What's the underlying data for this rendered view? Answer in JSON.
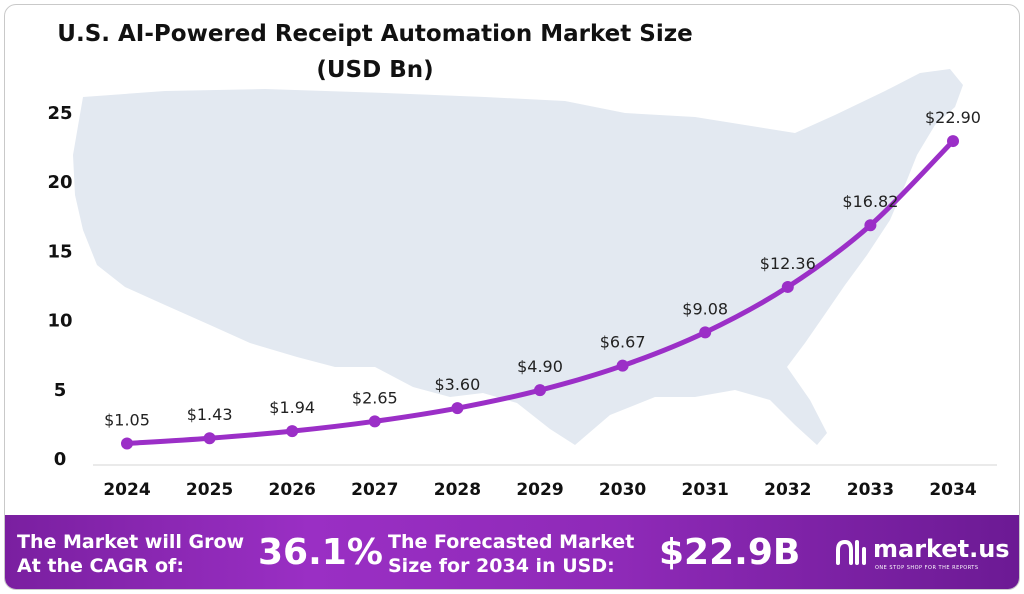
{
  "title_line1": "U.S. AI-Powered Receipt Automation Market Size",
  "title_line2": "(USD Bn)",
  "colors": {
    "line": "#9b2fc7",
    "map": "#e3e9f1",
    "footer_start": "#7a1fa0",
    "footer_end": "#6c1a94"
  },
  "chart_data": {
    "type": "line",
    "title": "U.S. AI-Powered Receipt Automation Market Size (USD Bn)",
    "xlabel": "",
    "ylabel": "",
    "categories": [
      "2024",
      "2025",
      "2026",
      "2027",
      "2028",
      "2029",
      "2030",
      "2031",
      "2032",
      "2033",
      "2034"
    ],
    "values": [
      1.05,
      1.43,
      1.94,
      2.65,
      3.6,
      4.9,
      6.67,
      9.08,
      12.36,
      16.82,
      22.9
    ],
    "data_labels": [
      "$1.05",
      "$1.43",
      "$1.94",
      "$2.65",
      "$3.60",
      "$4.90",
      "$6.67",
      "$9.08",
      "$12.36",
      "$16.82",
      "$22.90"
    ],
    "ylim": [
      0,
      25
    ],
    "yticks": [
      "0",
      "5",
      "10",
      "15",
      "20",
      "25"
    ],
    "grid": false,
    "legend": "none"
  },
  "footer": {
    "cagr_label_line1": "The Market will Grow",
    "cagr_label_line2": "At the CAGR of:",
    "cagr_value": "36.1%",
    "forecast_label_line1": "The Forecasted Market",
    "forecast_label_line2": "Size for 2034 in USD:",
    "forecast_value": "$22.9B",
    "brand_name": "market.us",
    "brand_tagline": "ONE STOP SHOP FOR THE REPORTS"
  }
}
